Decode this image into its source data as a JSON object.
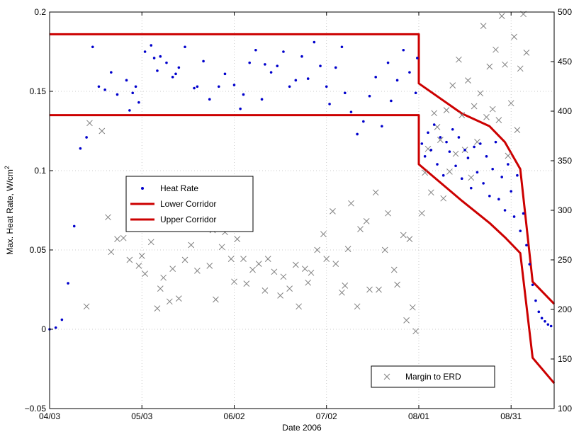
{
  "chart_data": {
    "type": "scatter",
    "xlabel": "Date 2006",
    "ylabel": "Max. Heat Rate, W/cm",
    "ylabel_superscript": "2",
    "x_range": [
      "2006-04-03",
      "2006-09-14"
    ],
    "xlim_days": [
      0,
      164
    ],
    "ylim": [
      -0.05,
      0.2
    ],
    "y2lim": [
      100,
      500
    ],
    "grid": true,
    "x_ticks": [
      {
        "date": "2006-04-03",
        "label": "04/03",
        "day": 0
      },
      {
        "date": "2006-05-03",
        "label": "05/03",
        "day": 30
      },
      {
        "date": "2006-06-02",
        "label": "06/02",
        "day": 60
      },
      {
        "date": "2006-07-02",
        "label": "07/02",
        "day": 90
      },
      {
        "date": "2006-08-01",
        "label": "08/01",
        "day": 120
      },
      {
        "date": "2006-08-31",
        "label": "08/31",
        "day": 150
      }
    ],
    "y_ticks": [
      "−0.05",
      "0",
      "0.05",
      "0.1",
      "0.15",
      "0.2"
    ],
    "y_tick_values": [
      -0.05,
      0,
      0.05,
      0.1,
      0.15,
      0.2
    ],
    "y2_ticks": [
      "100",
      "150",
      "200",
      "250",
      "300",
      "350",
      "400",
      "450",
      "500"
    ],
    "y2_tick_values": [
      100,
      150,
      200,
      250,
      300,
      350,
      400,
      450,
      500
    ],
    "legend_main": {
      "position": "center-left",
      "entries": [
        {
          "label": "Heat Rate",
          "marker": "dot",
          "color": "#0000cc"
        },
        {
          "label": "Lower Corridor",
          "marker": "line",
          "color": "#cc0000"
        },
        {
          "label": "Upper Corridor",
          "marker": "line",
          "color": "#cc0000"
        }
      ]
    },
    "legend_secondary": {
      "position": "bottom-right",
      "entries": [
        {
          "label": "Margin to ERD",
          "marker": "x",
          "color": "#808080"
        }
      ]
    },
    "series": [
      {
        "name": "Upper Corridor",
        "color": "#cc0000",
        "x": [
          0,
          120,
          120,
          134,
          143,
          148,
          153,
          157,
          164
        ],
        "y": [
          0.186,
          0.186,
          0.155,
          0.136,
          0.128,
          0.118,
          0.101,
          0.03,
          0.016
        ]
      },
      {
        "name": "Lower Corridor",
        "color": "#cc0000",
        "x": [
          0,
          120,
          120,
          134,
          143,
          148,
          153,
          157,
          164
        ],
        "y": [
          0.135,
          0.135,
          0.104,
          0.081,
          0.067,
          0.058,
          0.048,
          -0.018,
          -0.034
        ]
      }
    ],
    "heat_rate_points": {
      "name": "Heat Rate",
      "color": "#0000cc",
      "x": [
        0,
        2,
        4,
        6,
        8,
        10,
        12,
        14,
        16,
        18,
        20,
        22,
        25,
        26,
        27,
        28,
        29,
        31,
        33,
        34,
        35,
        36,
        38,
        40,
        41,
        42,
        44,
        47,
        48,
        50,
        52,
        55,
        57,
        60,
        62,
        63,
        65,
        67,
        69,
        70,
        72,
        74,
        76,
        78,
        80,
        82,
        84,
        86,
        88,
        90,
        91,
        93,
        95,
        96,
        98,
        100,
        102,
        104,
        106,
        108,
        110,
        111,
        113,
        115,
        117,
        119,
        119.5,
        121,
        122,
        123,
        124,
        125,
        126,
        127,
        128,
        129,
        130,
        131,
        132,
        133,
        134,
        135,
        136,
        137,
        138,
        139,
        140,
        141,
        142,
        143,
        144,
        145,
        146,
        147,
        148,
        149,
        150,
        151,
        152,
        153,
        154,
        155,
        156,
        157,
        158,
        159,
        160,
        161,
        162,
        163
      ],
      "y": [
        0,
        0.001,
        0.006,
        0.029,
        0.065,
        0.114,
        0.121,
        0.178,
        0.153,
        0.151,
        0.162,
        0.148,
        0.157,
        0.138,
        0.149,
        0.153,
        0.143,
        0.175,
        0.179,
        0.171,
        0.163,
        0.172,
        0.168,
        0.159,
        0.161,
        0.165,
        0.178,
        0.152,
        0.153,
        0.169,
        0.145,
        0.153,
        0.161,
        0.154,
        0.139,
        0.148,
        0.168,
        0.176,
        0.145,
        0.167,
        0.162,
        0.166,
        0.175,
        0.153,
        0.157,
        0.172,
        0.158,
        0.181,
        0.166,
        0.153,
        0.142,
        0.165,
        0.178,
        0.149,
        0.137,
        0.123,
        0.131,
        0.147,
        0.159,
        0.128,
        0.168,
        0.144,
        0.157,
        0.176,
        0.162,
        0.149,
        0.171,
        0.117,
        0.109,
        0.124,
        0.113,
        0.129,
        0.104,
        0.121,
        0.097,
        0.118,
        0.112,
        0.126,
        0.103,
        0.121,
        0.095,
        0.113,
        0.108,
        0.089,
        0.115,
        0.099,
        0.117,
        0.092,
        0.109,
        0.084,
        0.101,
        0.118,
        0.082,
        0.096,
        0.075,
        0.104,
        0.087,
        0.071,
        0.097,
        0.062,
        0.073,
        0.053,
        0.041,
        0.028,
        0.018,
        0.011,
        0.007,
        0.005,
        0.003,
        0.002
      ]
    },
    "margin_points": {
      "name": "Margin to ERD",
      "color": "#808080",
      "x": [
        12,
        13,
        17,
        19,
        20,
        22,
        24,
        26,
        27,
        29,
        30,
        31,
        33,
        35,
        36,
        37,
        39,
        40,
        42,
        44,
        45,
        46,
        48,
        50,
        52,
        53,
        54,
        56,
        57,
        59,
        60,
        61,
        63,
        64,
        66,
        68,
        70,
        71,
        73,
        75,
        76,
        78,
        80,
        81,
        83,
        84,
        85,
        87,
        89,
        90,
        92,
        93,
        95,
        96,
        97,
        98,
        100,
        101,
        103,
        104,
        106,
        107,
        109,
        110,
        112,
        113,
        115,
        116,
        117,
        118,
        119,
        121,
        122,
        123,
        124,
        125,
        126,
        127,
        128,
        129,
        130,
        131,
        132,
        133,
        134,
        135,
        136,
        137,
        138,
        139,
        140,
        141,
        142,
        143,
        144,
        145,
        146,
        147,
        148,
        149,
        150,
        151,
        152,
        153,
        154,
        155
      ],
      "y2": [
        203,
        388,
        380,
        293,
        258,
        271,
        272,
        250,
        302,
        244,
        254,
        236,
        268,
        201,
        221,
        232,
        208,
        241,
        211,
        250,
        288,
        265,
        239,
        301,
        244,
        280,
        210,
        263,
        278,
        251,
        228,
        271,
        251,
        226,
        240,
        246,
        219,
        251,
        238,
        214,
        233,
        221,
        245,
        203,
        241,
        227,
        237,
        260,
        276,
        251,
        299,
        246,
        217,
        224,
        261,
        307,
        203,
        281,
        289,
        220,
        318,
        220,
        260,
        297,
        240,
        225,
        275,
        189,
        271,
        202,
        178,
        297,
        338,
        362,
        318,
        398,
        384,
        371,
        312,
        401,
        339,
        426,
        357,
        452,
        396,
        361,
        431,
        333,
        405,
        369,
        418,
        486,
        394,
        445,
        402,
        462,
        391,
        496,
        447,
        355,
        408,
        475,
        381,
        443,
        498,
        459
      ]
    }
  }
}
